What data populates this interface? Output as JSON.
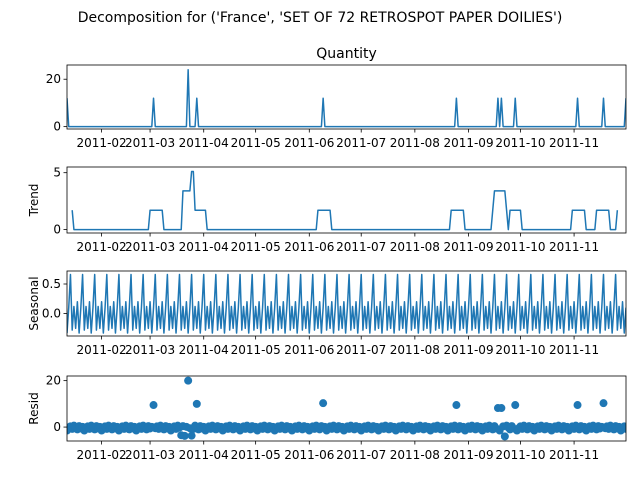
{
  "suptitle": "Decomposition for ('France', 'SET OF 72 RETROSPOT PAPER  DOILIES')",
  "colors": {
    "line": "#1f77b4",
    "axis": "#000000",
    "background": "#ffffff"
  },
  "x_axis": {
    "start": "2011-01-12",
    "end": "2011-12-01",
    "ticks": [
      "2011-02",
      "2011-03",
      "2011-04",
      "2011-05",
      "2011-06",
      "2011-07",
      "2011-08",
      "2011-09",
      "2011-10",
      "2011-11"
    ]
  },
  "chart_data": [
    {
      "type": "line",
      "title": "Quantity",
      "ylabel": "",
      "ylim": [
        -1,
        26
      ],
      "yticks": [
        0,
        20
      ],
      "baseline": 0,
      "series": [
        {
          "spikes": [
            {
              "date": "2011-01-12",
              "value": 12
            },
            {
              "date": "2011-03-03",
              "value": 12
            },
            {
              "date": "2011-03-23",
              "value": 24
            },
            {
              "date": "2011-03-28",
              "value": 12
            },
            {
              "date": "2011-06-09",
              "value": 12
            },
            {
              "date": "2011-08-25",
              "value": 12
            },
            {
              "date": "2011-09-18",
              "value": 12
            },
            {
              "date": "2011-09-20",
              "value": 12
            },
            {
              "date": "2011-09-28",
              "value": 12
            },
            {
              "date": "2011-11-03",
              "value": 12
            },
            {
              "date": "2011-11-18",
              "value": 12
            },
            {
              "date": "2011-12-01",
              "value": 12
            }
          ]
        }
      ]
    },
    {
      "type": "line",
      "title": "",
      "ylabel": "Trend",
      "ylim": [
        -0.3,
        5.5
      ],
      "yticks": [
        0,
        5
      ],
      "series": [
        {
          "points": [
            [
              "2011-01-15",
              1.7
            ],
            [
              "2011-01-16",
              0
            ],
            [
              "2011-02-28",
              0
            ],
            [
              "2011-03-01",
              1.7
            ],
            [
              "2011-03-08",
              1.7
            ],
            [
              "2011-03-09",
              0
            ],
            [
              "2011-03-19",
              0
            ],
            [
              "2011-03-20",
              3.4
            ],
            [
              "2011-03-24",
              3.4
            ],
            [
              "2011-03-25",
              5.1
            ],
            [
              "2011-03-26",
              5.1
            ],
            [
              "2011-03-27",
              1.7
            ],
            [
              "2011-04-02",
              1.7
            ],
            [
              "2011-04-03",
              0
            ],
            [
              "2011-06-05",
              0
            ],
            [
              "2011-06-06",
              1.7
            ],
            [
              "2011-06-13",
              1.7
            ],
            [
              "2011-06-14",
              0
            ],
            [
              "2011-08-21",
              0
            ],
            [
              "2011-08-22",
              1.7
            ],
            [
              "2011-08-29",
              1.7
            ],
            [
              "2011-08-30",
              0
            ],
            [
              "2011-09-14",
              0
            ],
            [
              "2011-09-15",
              1.7
            ],
            [
              "2011-09-16",
              3.4
            ],
            [
              "2011-09-22",
              3.4
            ],
            [
              "2011-09-23",
              1.7
            ],
            [
              "2011-09-24",
              0
            ],
            [
              "2011-09-25",
              1.7
            ],
            [
              "2011-10-01",
              1.7
            ],
            [
              "2011-10-02",
              0
            ],
            [
              "2011-10-30",
              0
            ],
            [
              "2011-10-31",
              1.7
            ],
            [
              "2011-11-07",
              1.7
            ],
            [
              "2011-11-08",
              0
            ],
            [
              "2011-11-13",
              0
            ],
            [
              "2011-11-14",
              1.7
            ],
            [
              "2011-11-21",
              1.7
            ],
            [
              "2011-11-22",
              0
            ],
            [
              "2011-11-25",
              0
            ],
            [
              "2011-11-26",
              1.7
            ]
          ]
        }
      ]
    },
    {
      "type": "line",
      "title": "",
      "ylabel": "Seasonal",
      "ylim": [
        -0.38,
        0.72
      ],
      "yticks": [
        0.0,
        0.5
      ],
      "ytick_labels": [
        "0.0",
        "0.5"
      ],
      "series": [
        {
          "period_days": 7,
          "cycle": [
            -0.33,
            0.1,
            0.66,
            -0.28,
            0.12,
            -0.25,
            0.2
          ]
        }
      ]
    },
    {
      "type": "scatter",
      "title": "",
      "ylabel": "Resid",
      "ylim": [
        -6,
        22
      ],
      "yticks": [
        0,
        20
      ],
      "baseline": 0,
      "series": [
        {
          "base_noise": [
            -1.5,
            -0.5,
            0.3,
            -0.8,
            0.6,
            -0.2,
            -1.0,
            0.4,
            -0.6,
            0.1
          ],
          "points": [
            [
              "2011-03-03",
              9.5
            ],
            [
              "2011-03-19",
              -3.5
            ],
            [
              "2011-03-21",
              -3.8
            ],
            [
              "2011-03-23",
              20
            ],
            [
              "2011-03-25",
              -3.7
            ],
            [
              "2011-03-28",
              10
            ],
            [
              "2011-06-09",
              10.3
            ],
            [
              "2011-08-25",
              9.5
            ],
            [
              "2011-09-18",
              8.2
            ],
            [
              "2011-09-20",
              8.2
            ],
            [
              "2011-09-22",
              -4
            ],
            [
              "2011-09-28",
              9.5
            ],
            [
              "2011-11-03",
              9.5
            ],
            [
              "2011-11-18",
              10.3
            ]
          ]
        }
      ]
    }
  ]
}
